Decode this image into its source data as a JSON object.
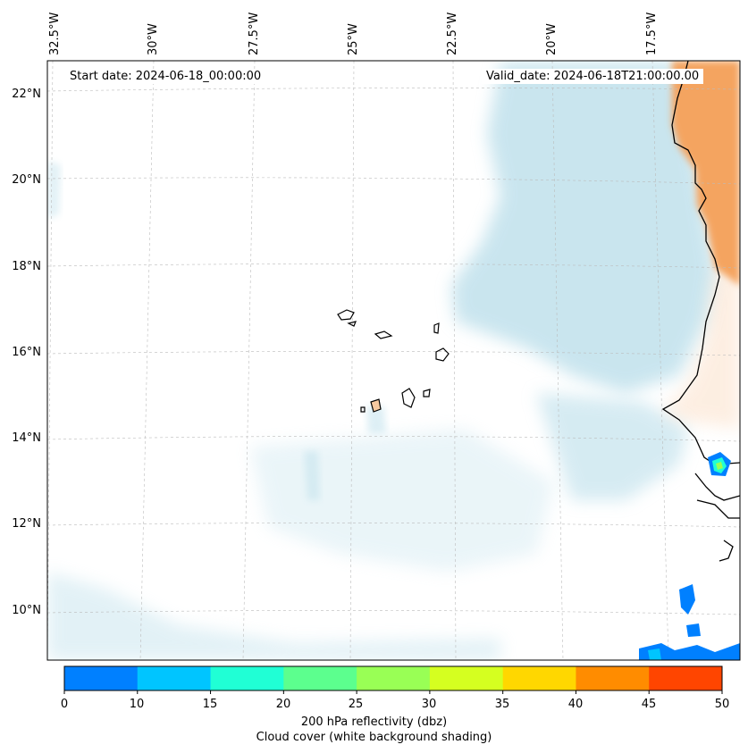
{
  "map": {
    "start_date": "Start date: 2024-06-18_00:00:00",
    "valid_date": "Valid_date: 2024-06-18T21:00:00.00",
    "lon_labels": [
      "32.5°W",
      "30°W",
      "27.5°W",
      "25°W",
      "22.5°W",
      "20°W",
      "17.5°W"
    ],
    "lat_labels": [
      "22°N",
      "20°N",
      "18°N",
      "16°N",
      "14°N",
      "12°N",
      "10°N"
    ],
    "colors": {
      "cloud": "#add8e6",
      "land": "#f4a460",
      "coast": "#000000",
      "grid": "#bbbbbb"
    }
  },
  "colorbar": {
    "ticks": [
      "0",
      "10",
      "15",
      "20",
      "25",
      "30",
      "35",
      "40",
      "45",
      "50"
    ],
    "colors": [
      "#0080ff",
      "#00c5ff",
      "#20ffd5",
      "#5cff8e",
      "#99ff55",
      "#d5ff20",
      "#ffd700",
      "#ff8c00",
      "#ff4500"
    ],
    "label_line1": "200 hPa reflectivity (dbz)",
    "label_line2": "Cloud cover (white background shading)"
  }
}
